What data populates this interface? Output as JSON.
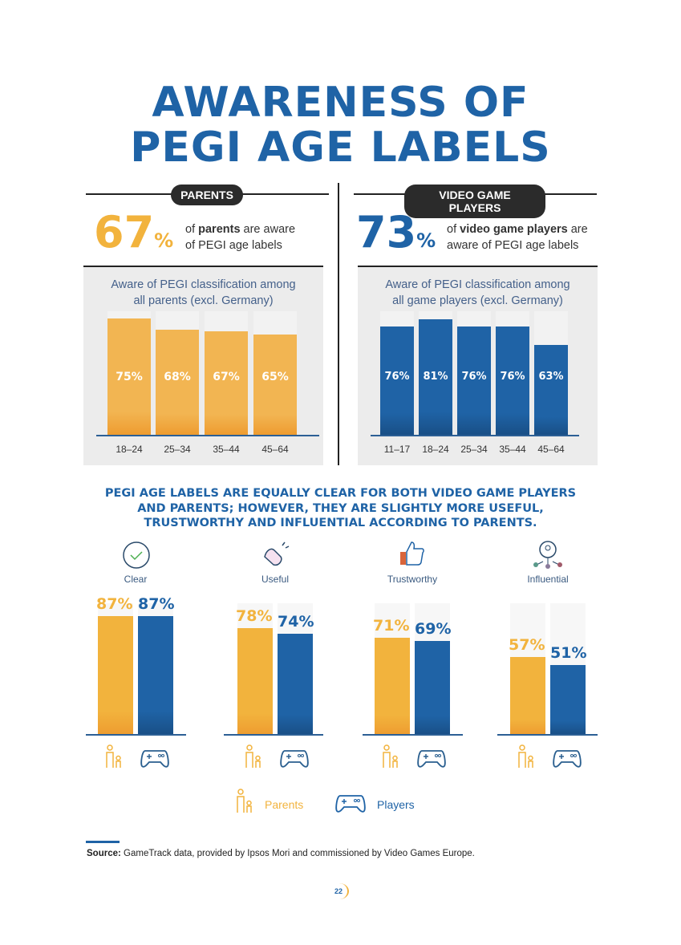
{
  "title_line1": "AWARENESS OF",
  "title_line2": "PEGI AGE LABELS",
  "parents": {
    "pill": "PARENTS",
    "big": "67",
    "pct": "%",
    "desc_pre": "of ",
    "desc_bold": "parents",
    "desc_post": " are aware",
    "desc_line2": "of PEGI age labels",
    "panel_title1": "Aware of PEGI classification among",
    "panel_title2": "all parents (excl. Germany)"
  },
  "players": {
    "pill": "VIDEO GAME PLAYERS",
    "big": "73",
    "pct": "%",
    "desc_pre": "of ",
    "desc_bold": "video game players",
    "desc_post": " are",
    "desc_line2": "aware of PEGI age labels",
    "panel_title1": "Aware of PEGI classification among",
    "panel_title2": "all game players (excl. Germany)"
  },
  "subtitle": [
    "PEGI AGE LABELS ARE EQUALLY CLEAR FOR BOTH VIDEO GAME PLAYERS",
    "AND PARENTS; HOWEVER, THEY ARE SLIGHTLY MORE USEFUL,",
    "TRUSTWORTHY AND INFLUENTIAL ACCORDING TO PARENTS."
  ],
  "legend": {
    "parents": "Parents",
    "players": "Players"
  },
  "source_bold": "Source:",
  "source_text": " GameTrack data, provided by Ipsos Mori and commissioned by Video Games Europe.",
  "page_number": "22",
  "colors": {
    "parents": "#f2b33d",
    "players": "#1f63a6"
  },
  "chart_data": [
    {
      "type": "bar",
      "title": "Aware of PEGI classification among all parents (excl. Germany)",
      "categories": [
        "18–24",
        "25–34",
        "35–44",
        "45–64"
      ],
      "values": [
        75,
        68,
        67,
        65
      ],
      "labels": [
        "75%",
        "68%",
        "67%",
        "65%"
      ],
      "unit": "%"
    },
    {
      "type": "bar",
      "title": "Aware of PEGI classification among all game players (excl. Germany)",
      "categories": [
        "11–17",
        "18–24",
        "25–34",
        "35–44",
        "45–64"
      ],
      "values": [
        76,
        81,
        76,
        76,
        63
      ],
      "labels": [
        "76%",
        "81%",
        "76%",
        "76%",
        "63%"
      ],
      "unit": "%"
    },
    {
      "type": "bar",
      "categories": [
        "Clear",
        "Useful",
        "Trustworthy",
        "Influential"
      ],
      "series": [
        {
          "name": "Parents",
          "values": [
            87,
            78,
            71,
            57
          ],
          "labels": [
            "87%",
            "78%",
            "71%",
            "57%"
          ]
        },
        {
          "name": "Players",
          "values": [
            87,
            74,
            69,
            51
          ],
          "labels": [
            "87%",
            "74%",
            "69%",
            "51%"
          ]
        }
      ],
      "unit": "%"
    }
  ]
}
